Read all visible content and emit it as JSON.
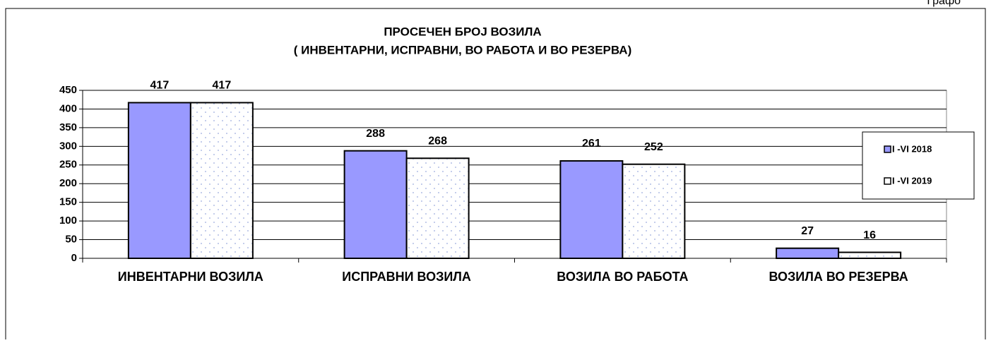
{
  "page_label": "Графо",
  "chart_data": {
    "type": "bar",
    "title": "ПРОСЕЧЕН БРОЈ ВОЗИЛА",
    "subtitle": "( ИНВЕНТАРНИ, ИСПРАВНИ, ВО РАБОТА И ВО РЕЗЕРВА)",
    "categories": [
      "ИНВЕНТАРНИ ВОЗИЛА",
      "ИСПРАВНИ ВОЗИЛА",
      "ВОЗИЛА ВО РАБОТА",
      "ВОЗИЛА ВО РЕЗЕРВА"
    ],
    "series": [
      {
        "name": "I -VI 2018",
        "color": "#9999ff",
        "values": [
          417,
          288,
          261,
          27
        ]
      },
      {
        "name": "I -VI 2019",
        "color": "#ffffff",
        "values": [
          417,
          268,
          252,
          16
        ]
      }
    ],
    "ylim": [
      0,
      450
    ],
    "yticks": [
      0,
      50,
      100,
      150,
      200,
      250,
      300,
      350,
      400,
      450
    ],
    "grid": true,
    "legend": "right"
  }
}
